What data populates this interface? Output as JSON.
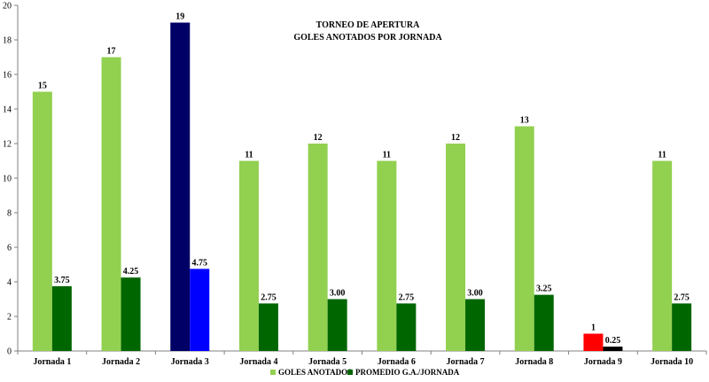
{
  "chart_data": {
    "type": "bar",
    "title": "TORNEO DE APERTURA",
    "subtitle": "GOLES ANOTADOS POR JORNADA",
    "categories": [
      "Jornada 1",
      "Jornada 2",
      "Jornada 3",
      "Jornada 4",
      "Jornada 5",
      "Jornada 6",
      "Jornada 7",
      "Jornada 8",
      "Jornada 9",
      "Jornada 10"
    ],
    "series": [
      {
        "name": "GOLES ANOTADOS",
        "values": [
          15,
          17,
          19,
          11,
          12,
          11,
          12,
          13,
          1,
          11
        ],
        "labels": [
          "15",
          "17",
          "19",
          "11",
          "12",
          "11",
          "12",
          "13",
          "1",
          "11"
        ],
        "color": "#92D050",
        "point_colors": {
          "2": "#000066",
          "8": "#FF0000"
        }
      },
      {
        "name": "PROMEDIO G.A./JORNADA",
        "values": [
          3.75,
          4.25,
          4.75,
          2.75,
          3.0,
          2.75,
          3.0,
          3.25,
          0.25,
          2.75
        ],
        "labels": [
          "3.75",
          "4.25",
          "4.75",
          "2.75",
          "3.00",
          "2.75",
          "3.00",
          "3.25",
          "0.25",
          "2.75"
        ],
        "color": "#006600",
        "point_colors": {
          "2": "#0000FF",
          "8": "#000000"
        }
      }
    ],
    "xlabel": "",
    "ylabel": "",
    "ylim": [
      0,
      20
    ],
    "yticks": [
      "0",
      "2",
      "4",
      "6",
      "8",
      "10",
      "12",
      "14",
      "16",
      "18",
      "20"
    ],
    "grid": false,
    "legend": "bottom"
  }
}
